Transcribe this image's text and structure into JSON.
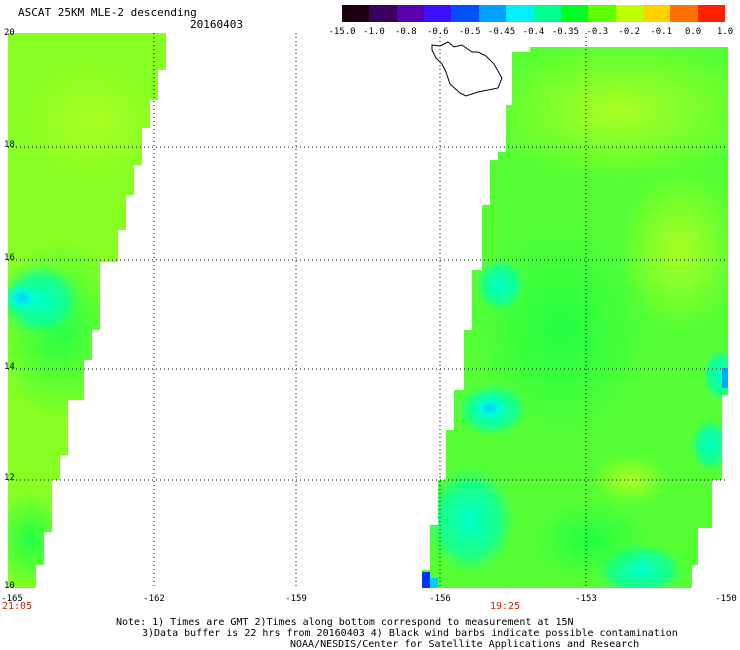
{
  "header": {
    "title": "ASCAT 25KM MLE-2 descending",
    "date": "20160403"
  },
  "colorbar": {
    "labels": [
      "-15.0",
      "-1.0",
      "-0.8",
      "-0.6",
      "-0.5",
      "-0.45",
      "-0.4",
      "-0.35",
      "-0.3",
      "-0.2",
      "-0.1",
      "0.0",
      "1.0"
    ],
    "colors": [
      "#1a0010",
      "#3a0060",
      "#5a00b0",
      "#3a10ff",
      "#0050ff",
      "#00a0ff",
      "#00f0ff",
      "#00ff90",
      "#00ff20",
      "#60ff00",
      "#c0ff00",
      "#ffd000",
      "#ff7000",
      "#ff2000"
    ]
  },
  "map": {
    "lat_labels": [
      "20",
      "18",
      "16",
      "14",
      "12",
      "10"
    ],
    "lon_labels": [
      "-165",
      "-162",
      "-159",
      "-156",
      "-153",
      "-150"
    ],
    "times": [
      "21:05",
      "19:25"
    ],
    "colors": {
      "base": "#66ff33",
      "yellow_green": "#99ff22",
      "green": "#22ff44",
      "cyan": "#00ffcc",
      "cyan_deep": "#00ddff",
      "blue": "#0033ff",
      "coast": "#000000"
    }
  },
  "notes": [
    "Note: 1) Times are GMT 2)Times along bottom correspond to measurement at 15N",
    "3)Data buffer is 22 hrs from 20160403 4) Black wind barbs indicate possible contamination",
    "NOAA/NESDIS/Center for Satellite Applications and Research"
  ]
}
